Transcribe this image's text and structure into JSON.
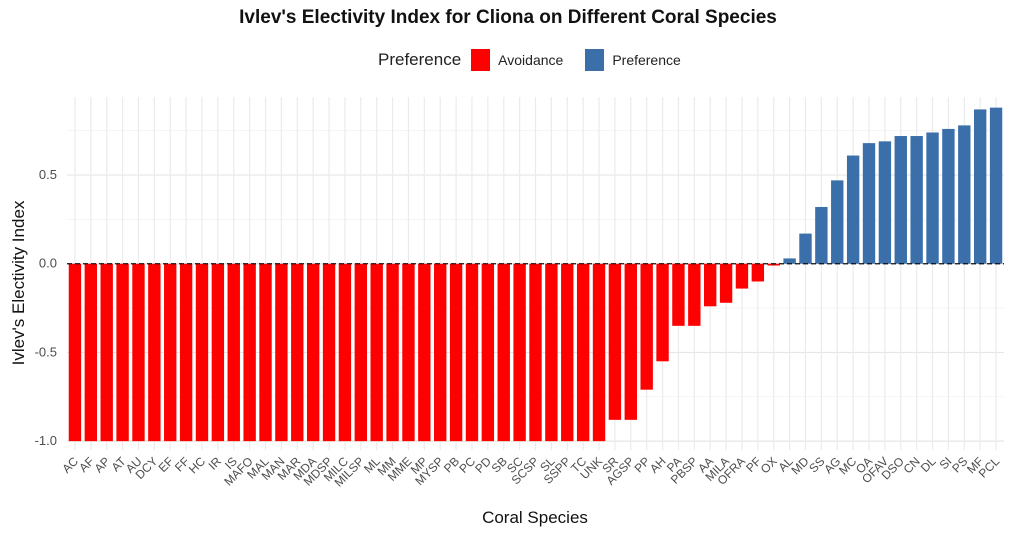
{
  "chart_data": {
    "type": "bar",
    "title": "Ivlev's Electivity Index for Cliona on Different Coral Species",
    "xlabel": "Coral Species",
    "ylabel": "Ivlev's Electivity Index",
    "ylim": [
      -1.0,
      0.88
    ],
    "yticks": [
      -1.0,
      -0.5,
      0.0,
      0.5
    ],
    "ytick_labels": [
      "-1.0",
      "-0.5",
      "0.0",
      "0.5"
    ],
    "grid": true,
    "reference_line": 0.0,
    "legend": {
      "title": "Preference",
      "placement": "top",
      "entries": [
        {
          "label": "Avoidance",
          "color": "#ff0000"
        },
        {
          "label": "Preference",
          "color": "#3b6faa"
        }
      ]
    },
    "categories": [
      "AC",
      "AF",
      "AP",
      "AT",
      "AU",
      "DCY",
      "EF",
      "FF",
      "HC",
      "IR",
      "IS",
      "MAFO",
      "MAL",
      "MAN",
      "MAR",
      "MDA",
      "MDSP",
      "MILC",
      "MILSP",
      "ML",
      "MM",
      "MME",
      "MP",
      "MYSP",
      "PB",
      "PC",
      "PD",
      "SB",
      "SC",
      "SCSP",
      "SL",
      "SSPP",
      "TC",
      "UNK",
      "SR",
      "AGSP",
      "PP",
      "AH",
      "PA",
      "PBSP",
      "AA",
      "MILA",
      "OFRA",
      "PF",
      "OX",
      "AL",
      "MD",
      "SS",
      "AG",
      "MC",
      "OA",
      "OFAV",
      "DSO",
      "CN",
      "DL",
      "SI",
      "PS",
      "MF",
      "PCL"
    ],
    "values": [
      -1,
      -1,
      -1,
      -1,
      -1,
      -1,
      -1,
      -1,
      -1,
      -1,
      -1,
      -1,
      -1,
      -1,
      -1,
      -1,
      -1,
      -1,
      -1,
      -1,
      -1,
      -1,
      -1,
      -1,
      -1,
      -1,
      -1,
      -1,
      -1,
      -1,
      -1,
      -1,
      -1,
      -1,
      -0.88,
      -0.88,
      -0.71,
      -0.55,
      -0.35,
      -0.35,
      -0.24,
      -0.22,
      -0.14,
      -0.1,
      -0.01,
      0.03,
      0.17,
      0.32,
      0.47,
      0.61,
      0.68,
      0.69,
      0.72,
      0.72,
      0.74,
      0.76,
      0.78,
      0.87,
      0.88
    ],
    "groups": [
      "Avoidance",
      "Avoidance",
      "Avoidance",
      "Avoidance",
      "Avoidance",
      "Avoidance",
      "Avoidance",
      "Avoidance",
      "Avoidance",
      "Avoidance",
      "Avoidance",
      "Avoidance",
      "Avoidance",
      "Avoidance",
      "Avoidance",
      "Avoidance",
      "Avoidance",
      "Avoidance",
      "Avoidance",
      "Avoidance",
      "Avoidance",
      "Avoidance",
      "Avoidance",
      "Avoidance",
      "Avoidance",
      "Avoidance",
      "Avoidance",
      "Avoidance",
      "Avoidance",
      "Avoidance",
      "Avoidance",
      "Avoidance",
      "Avoidance",
      "Avoidance",
      "Avoidance",
      "Avoidance",
      "Avoidance",
      "Avoidance",
      "Avoidance",
      "Avoidance",
      "Avoidance",
      "Avoidance",
      "Avoidance",
      "Avoidance",
      "Avoidance",
      "Preference",
      "Preference",
      "Preference",
      "Preference",
      "Preference",
      "Preference",
      "Preference",
      "Preference",
      "Preference",
      "Preference",
      "Preference",
      "Preference",
      "Preference",
      "Preference"
    ]
  }
}
